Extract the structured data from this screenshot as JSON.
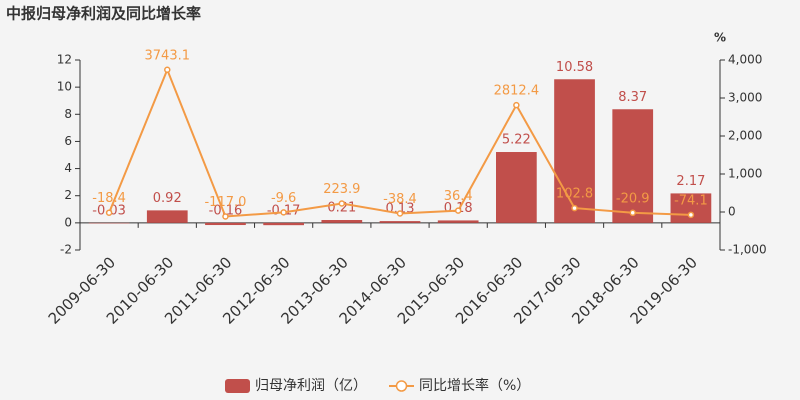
{
  "chart_data": {
    "type": "bar",
    "title": "中报归母净利润及同比增长率",
    "y2label": "%",
    "categories": [
      "2009-06-30",
      "2010-06-30",
      "2011-06-30",
      "2012-06-30",
      "2013-06-30",
      "2014-06-30",
      "2015-06-30",
      "2016-06-30",
      "2017-06-30",
      "2018-06-30",
      "2019-06-30"
    ],
    "series": [
      {
        "name": "归母净利润（亿）",
        "type": "bar",
        "color": "#c14f4b",
        "values": [
          -0.03,
          0.92,
          -0.16,
          -0.17,
          0.21,
          0.13,
          0.18,
          5.22,
          10.58,
          8.37,
          2.17
        ]
      },
      {
        "name": "同比增长率（%）",
        "type": "line",
        "axis": "y2",
        "color": "#f39a45",
        "values": [
          -18.4,
          3743.1,
          -117.0,
          -9.6,
          223.9,
          -38.4,
          36.4,
          2812.4,
          102.8,
          -20.9,
          -74.1
        ],
        "value_labels": [
          "-18.4",
          "3743.1",
          "-117.0",
          "-9.6",
          "223.9",
          "-38.4",
          "36.4",
          "2812.4",
          "102.8",
          "-20.9",
          "-74.1"
        ]
      }
    ],
    "ylim": [
      -2,
      12
    ],
    "yticks": [
      -2,
      0,
      2,
      4,
      6,
      8,
      10,
      12
    ],
    "y2lim": [
      -1000,
      4000
    ],
    "y2ticks": [
      {
        "value": -1000,
        "label": "-1,000"
      },
      0,
      {
        "value": 1000,
        "label": "1,000"
      },
      {
        "value": 2000,
        "label": "2,000"
      },
      {
        "value": 3000,
        "label": "3,000"
      },
      {
        "value": 4000,
        "label": "4,000"
      }
    ],
    "grid": false
  }
}
